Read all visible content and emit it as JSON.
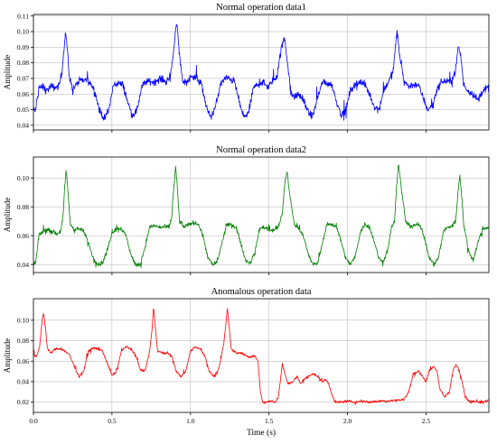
{
  "chart_data": [
    {
      "type": "line",
      "title": "Normal operation data1",
      "xlabel": "",
      "ylabel": "Amplitude",
      "xlim": [
        0.0,
        2.9
      ],
      "ylim": [
        0.037,
        0.111
      ],
      "yticks": [
        0.04,
        0.05,
        0.06,
        0.07,
        0.08,
        0.09,
        0.1,
        0.11
      ],
      "ytick_labels": [
        "0.04",
        "0.05",
        "0.06",
        "0.07",
        "0.08",
        "0.09",
        "0.10",
        "0.11"
      ],
      "xticks": [
        0.0,
        0.5,
        1.0,
        1.5,
        2.0,
        2.5
      ],
      "xtick_labels": [
        "",
        "",
        "",
        "",
        "",
        ""
      ],
      "grid": true,
      "color": "#0000ff",
      "noise": 0.0035,
      "series": [
        {
          "x": [
            0.0,
            0.012,
            0.035,
            0.06,
            0.085,
            0.11,
            0.135,
            0.16,
            0.18,
            0.195,
            0.205,
            0.215,
            0.23,
            0.25,
            0.29,
            0.33,
            0.36,
            0.39,
            0.42,
            0.45,
            0.48,
            0.51,
            0.54,
            0.57,
            0.6,
            0.63,
            0.66,
            0.69,
            0.72,
            0.75,
            0.78,
            0.81,
            0.84,
            0.87,
            0.89,
            0.905,
            0.915,
            0.93,
            0.95,
            0.98,
            1.01,
            1.04,
            1.07,
            1.1,
            1.13,
            1.16,
            1.19,
            1.22,
            1.25,
            1.28,
            1.31,
            1.34,
            1.37,
            1.4,
            1.43,
            1.46,
            1.49,
            1.52,
            1.55,
            1.58,
            1.6,
            1.62,
            1.64,
            1.66,
            1.69,
            1.72,
            1.75,
            1.78,
            1.81,
            1.84,
            1.87,
            1.9,
            1.93,
            1.96,
            1.99,
            2.02,
            2.05,
            2.08,
            2.11,
            2.14,
            2.17,
            2.2,
            2.23,
            2.26,
            2.29,
            2.305,
            2.315,
            2.33,
            2.36,
            2.39,
            2.42,
            2.45,
            2.48,
            2.51,
            2.54,
            2.57,
            2.6,
            2.63,
            2.66,
            2.69,
            2.705,
            2.72,
            2.74,
            2.77,
            2.8,
            2.83,
            2.86,
            2.9
          ],
          "y": [
            0.05,
            0.049,
            0.064,
            0.065,
            0.062,
            0.065,
            0.064,
            0.065,
            0.072,
            0.09,
            0.1,
            0.09,
            0.07,
            0.063,
            0.068,
            0.069,
            0.068,
            0.062,
            0.05,
            0.044,
            0.05,
            0.066,
            0.067,
            0.066,
            0.055,
            0.046,
            0.05,
            0.065,
            0.068,
            0.068,
            0.068,
            0.07,
            0.068,
            0.07,
            0.085,
            0.101,
            0.104,
            0.085,
            0.068,
            0.068,
            0.072,
            0.07,
            0.066,
            0.052,
            0.045,
            0.052,
            0.066,
            0.07,
            0.07,
            0.068,
            0.055,
            0.045,
            0.048,
            0.064,
            0.066,
            0.068,
            0.064,
            0.068,
            0.072,
            0.09,
            0.096,
            0.078,
            0.06,
            0.058,
            0.06,
            0.056,
            0.048,
            0.046,
            0.058,
            0.068,
            0.067,
            0.066,
            0.055,
            0.047,
            0.05,
            0.063,
            0.066,
            0.068,
            0.066,
            0.06,
            0.052,
            0.05,
            0.062,
            0.068,
            0.074,
            0.09,
            0.101,
            0.086,
            0.068,
            0.065,
            0.066,
            0.066,
            0.058,
            0.05,
            0.052,
            0.063,
            0.068,
            0.068,
            0.068,
            0.076,
            0.091,
            0.085,
            0.066,
            0.062,
            0.06,
            0.056,
            0.062,
            0.064
          ]
        }
      ]
    },
    {
      "type": "line",
      "title": "Normal operation data2",
      "xlabel": "",
      "ylabel": "Amplitude",
      "xlim": [
        0.0,
        2.9
      ],
      "ylim": [
        0.0345,
        0.1145
      ],
      "yticks": [
        0.04,
        0.06,
        0.08,
        0.1
      ],
      "ytick_labels": [
        "0.04",
        "0.06",
        "0.08",
        "0.10"
      ],
      "xticks": [
        0.0,
        0.5,
        1.0,
        1.5,
        2.0,
        2.5
      ],
      "xtick_labels": [
        "",
        "",
        "",
        "",
        "",
        ""
      ],
      "grid": true,
      "color": "#008000",
      "noise": 0.0022,
      "series": [
        {
          "x": [
            0.0,
            0.015,
            0.035,
            0.06,
            0.09,
            0.12,
            0.15,
            0.175,
            0.19,
            0.2,
            0.21,
            0.22,
            0.235,
            0.26,
            0.29,
            0.32,
            0.35,
            0.38,
            0.41,
            0.44,
            0.47,
            0.5,
            0.53,
            0.56,
            0.59,
            0.62,
            0.65,
            0.68,
            0.71,
            0.74,
            0.77,
            0.8,
            0.83,
            0.86,
            0.88,
            0.895,
            0.905,
            0.915,
            0.93,
            0.96,
            0.99,
            1.02,
            1.05,
            1.08,
            1.11,
            1.14,
            1.17,
            1.2,
            1.23,
            1.26,
            1.29,
            1.32,
            1.35,
            1.38,
            1.41,
            1.44,
            1.47,
            1.5,
            1.53,
            1.56,
            1.585,
            1.6,
            1.615,
            1.63,
            1.66,
            1.69,
            1.72,
            1.75,
            1.78,
            1.81,
            1.84,
            1.87,
            1.9,
            1.93,
            1.96,
            1.99,
            2.02,
            2.05,
            2.08,
            2.11,
            2.14,
            2.17,
            2.2,
            2.23,
            2.26,
            2.28,
            2.3,
            2.31,
            2.325,
            2.34,
            2.37,
            2.4,
            2.43,
            2.46,
            2.49,
            2.52,
            2.55,
            2.58,
            2.61,
            2.64,
            2.67,
            2.69,
            2.705,
            2.715,
            2.725,
            2.74,
            2.77,
            2.8,
            2.83,
            2.86,
            2.9
          ],
          "y": [
            0.04,
            0.042,
            0.06,
            0.063,
            0.064,
            0.063,
            0.061,
            0.064,
            0.075,
            0.095,
            0.104,
            0.09,
            0.068,
            0.064,
            0.065,
            0.063,
            0.055,
            0.045,
            0.04,
            0.041,
            0.05,
            0.062,
            0.065,
            0.065,
            0.06,
            0.047,
            0.04,
            0.04,
            0.052,
            0.066,
            0.067,
            0.066,
            0.066,
            0.066,
            0.072,
            0.095,
            0.108,
            0.095,
            0.07,
            0.066,
            0.068,
            0.069,
            0.068,
            0.06,
            0.045,
            0.04,
            0.042,
            0.055,
            0.067,
            0.068,
            0.066,
            0.055,
            0.043,
            0.041,
            0.048,
            0.065,
            0.066,
            0.064,
            0.064,
            0.066,
            0.075,
            0.096,
            0.105,
            0.09,
            0.068,
            0.065,
            0.06,
            0.047,
            0.04,
            0.041,
            0.055,
            0.068,
            0.068,
            0.066,
            0.056,
            0.044,
            0.04,
            0.046,
            0.062,
            0.068,
            0.066,
            0.056,
            0.044,
            0.042,
            0.052,
            0.066,
            0.07,
            0.09,
            0.111,
            0.095,
            0.07,
            0.066,
            0.068,
            0.068,
            0.058,
            0.045,
            0.04,
            0.045,
            0.063,
            0.066,
            0.067,
            0.072,
            0.092,
            0.102,
            0.09,
            0.068,
            0.05,
            0.043,
            0.055,
            0.065,
            0.066
          ]
        }
      ]
    },
    {
      "type": "line",
      "title": "Anomalous operation data",
      "xlabel": "Time (s)",
      "ylabel": "Amplitude",
      "xlim": [
        0.0,
        2.9
      ],
      "ylim": [
        0.01,
        0.121
      ],
      "yticks": [
        0.02,
        0.04,
        0.06,
        0.08,
        0.1
      ],
      "ytick_labels": [
        "0.02",
        "0.04",
        "0.06",
        "0.08",
        "0.10"
      ],
      "xticks": [
        0.0,
        0.5,
        1.0,
        1.5,
        2.0,
        2.5
      ],
      "xtick_labels": [
        "0.0",
        "0.5",
        "1.0",
        "1.5",
        "2.0",
        "2.5"
      ],
      "grid": true,
      "color": "#ff0000",
      "noise": 0.0018,
      "series": [
        {
          "x": [
            0.0,
            0.02,
            0.04,
            0.055,
            0.065,
            0.075,
            0.09,
            0.11,
            0.14,
            0.17,
            0.2,
            0.23,
            0.26,
            0.29,
            0.32,
            0.35,
            0.38,
            0.41,
            0.44,
            0.47,
            0.5,
            0.53,
            0.56,
            0.59,
            0.62,
            0.65,
            0.68,
            0.71,
            0.74,
            0.755,
            0.765,
            0.775,
            0.79,
            0.82,
            0.85,
            0.88,
            0.91,
            0.94,
            0.97,
            1.0,
            1.03,
            1.06,
            1.09,
            1.12,
            1.15,
            1.18,
            1.21,
            1.225,
            1.235,
            1.245,
            1.26,
            1.29,
            1.32,
            1.35,
            1.38,
            1.41,
            1.43,
            1.445,
            1.46,
            1.48,
            1.5,
            1.52,
            1.54,
            1.56,
            1.575,
            1.585,
            1.6,
            1.62,
            1.65,
            1.68,
            1.7,
            1.72,
            1.75,
            1.78,
            1.81,
            1.84,
            1.86,
            1.88,
            1.9,
            1.92,
            1.95,
            2.0,
            2.05,
            2.1,
            2.15,
            2.2,
            2.25,
            2.3,
            2.33,
            2.36,
            2.39,
            2.42,
            2.45,
            2.48,
            2.5,
            2.52,
            2.55,
            2.57,
            2.59,
            2.62,
            2.65,
            2.67,
            2.69,
            2.71,
            2.73,
            2.75,
            2.78,
            2.81,
            2.85,
            2.9
          ],
          "y": [
            0.067,
            0.064,
            0.075,
            0.1,
            0.107,
            0.095,
            0.072,
            0.068,
            0.072,
            0.072,
            0.07,
            0.066,
            0.055,
            0.045,
            0.05,
            0.07,
            0.073,
            0.072,
            0.07,
            0.058,
            0.046,
            0.05,
            0.07,
            0.074,
            0.072,
            0.066,
            0.052,
            0.05,
            0.07,
            0.09,
            0.113,
            0.095,
            0.07,
            0.068,
            0.068,
            0.065,
            0.05,
            0.045,
            0.05,
            0.07,
            0.074,
            0.072,
            0.066,
            0.05,
            0.045,
            0.052,
            0.075,
            0.095,
            0.112,
            0.095,
            0.072,
            0.068,
            0.068,
            0.066,
            0.064,
            0.065,
            0.06,
            0.03,
            0.02,
            0.02,
            0.021,
            0.021,
            0.02,
            0.025,
            0.045,
            0.058,
            0.048,
            0.038,
            0.04,
            0.045,
            0.038,
            0.042,
            0.045,
            0.048,
            0.045,
            0.04,
            0.042,
            0.038,
            0.028,
            0.02,
            0.02,
            0.021,
            0.02,
            0.021,
            0.02,
            0.021,
            0.021,
            0.022,
            0.022,
            0.023,
            0.03,
            0.048,
            0.05,
            0.045,
            0.04,
            0.05,
            0.055,
            0.05,
            0.032,
            0.025,
            0.03,
            0.05,
            0.057,
            0.052,
            0.04,
            0.025,
            0.02,
            0.021,
            0.02,
            0.022
          ]
        }
      ]
    }
  ]
}
